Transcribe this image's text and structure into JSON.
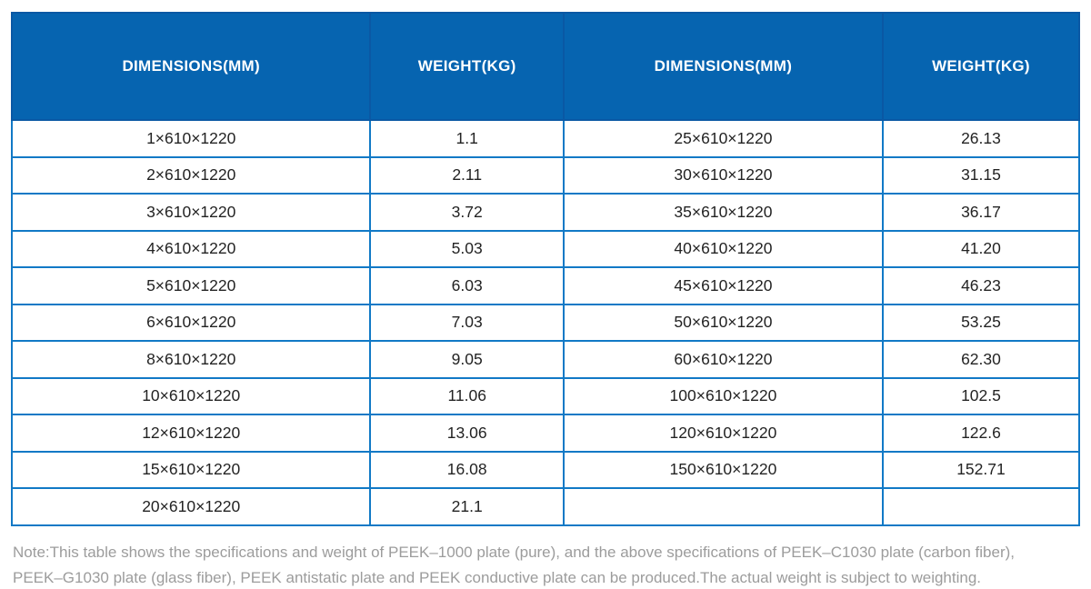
{
  "table": {
    "headers": [
      "DIMENSIONS(MM)",
      "WEIGHT(KG)",
      "DIMENSIONS(MM)",
      "WEIGHT(KG)"
    ],
    "rows": [
      [
        "1×610×1220",
        "1.1",
        "25×610×1220",
        "26.13"
      ],
      [
        "2×610×1220",
        "2.11",
        "30×610×1220",
        "31.15"
      ],
      [
        "3×610×1220",
        "3.72",
        "35×610×1220",
        "36.17"
      ],
      [
        "4×610×1220",
        "5.03",
        "40×610×1220",
        "41.20"
      ],
      [
        "5×610×1220",
        "6.03",
        "45×610×1220",
        "46.23"
      ],
      [
        "6×610×1220",
        "7.03",
        "50×610×1220",
        "53.25"
      ],
      [
        "8×610×1220",
        "9.05",
        "60×610×1220",
        "62.30"
      ],
      [
        "10×610×1220",
        "11.06",
        "100×610×1220",
        "102.5"
      ],
      [
        "12×610×1220",
        "13.06",
        "120×610×1220",
        "122.6"
      ],
      [
        "15×610×1220",
        "16.08",
        "150×610×1220",
        "152.71"
      ],
      [
        "20×610×1220",
        "21.1",
        "",
        ""
      ]
    ]
  },
  "note": {
    "text": "Note:This table shows the specifications and weight of PEEK–1000 plate (pure), and the above specifications of PEEK–C1030 plate (carbon fiber), PEEK–G1030 plate (glass fiber), PEEK antistatic plate and PEEK conductive plate can be produced.The actual weight is subject to weighting."
  },
  "colors": {
    "header_bg": "#0664b0",
    "header_border": "#0a58a4",
    "header_text": "#ffffff",
    "body_border": "#1179c6",
    "body_text": "#232323",
    "note_text": "#9c9c9c"
  }
}
